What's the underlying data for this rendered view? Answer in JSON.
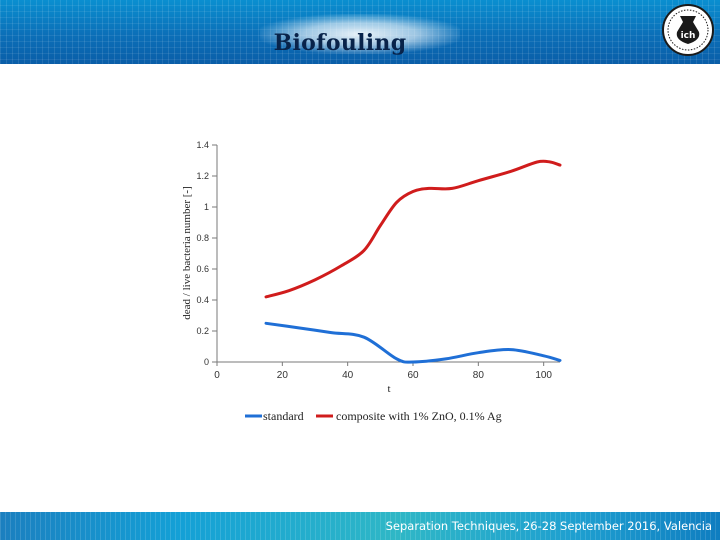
{
  "slide": {
    "title": "Biofouling",
    "footer": "Separation Techniques, 26-28 September 2016, Valencia",
    "logo_text": "ich"
  },
  "colors": {
    "header": "#0b6fb8",
    "standard": "#1f6fd6",
    "composite": "#d01c1c"
  },
  "chart_data": {
    "type": "line",
    "title": "",
    "xlabel": "t",
    "ylabel": "dead / live bacteria number [-]",
    "xlim": [
      0,
      105
    ],
    "ylim": [
      0,
      1.4
    ],
    "x_ticks": [
      0,
      20,
      40,
      60,
      80,
      100
    ],
    "y_ticks": [
      0,
      0.2,
      0.4,
      0.6,
      0.8,
      1,
      1.2,
      1.4
    ],
    "y_tick_labels": [
      "0",
      "0.2",
      "0.4",
      "0.6",
      "0.8",
      "1",
      "1.2",
      "1.4"
    ],
    "grid": false,
    "legend_position": "bottom",
    "series": [
      {
        "name": "standard",
        "x": [
          15,
          25,
          35,
          45,
          55,
          60,
          70,
          80,
          90,
          100,
          105
        ],
        "y": [
          0.25,
          0.22,
          0.19,
          0.16,
          0.02,
          0.0,
          0.02,
          0.06,
          0.08,
          0.04,
          0.01
        ]
      },
      {
        "name": "composite with 1% ZnO, 0.1% Ag",
        "x": [
          15,
          22,
          30,
          38,
          45,
          50,
          55,
          60,
          65,
          72,
          80,
          90,
          98,
          102,
          105
        ],
        "y": [
          0.42,
          0.46,
          0.53,
          0.62,
          0.72,
          0.88,
          1.03,
          1.1,
          1.12,
          1.12,
          1.17,
          1.23,
          1.29,
          1.29,
          1.27
        ]
      }
    ]
  }
}
